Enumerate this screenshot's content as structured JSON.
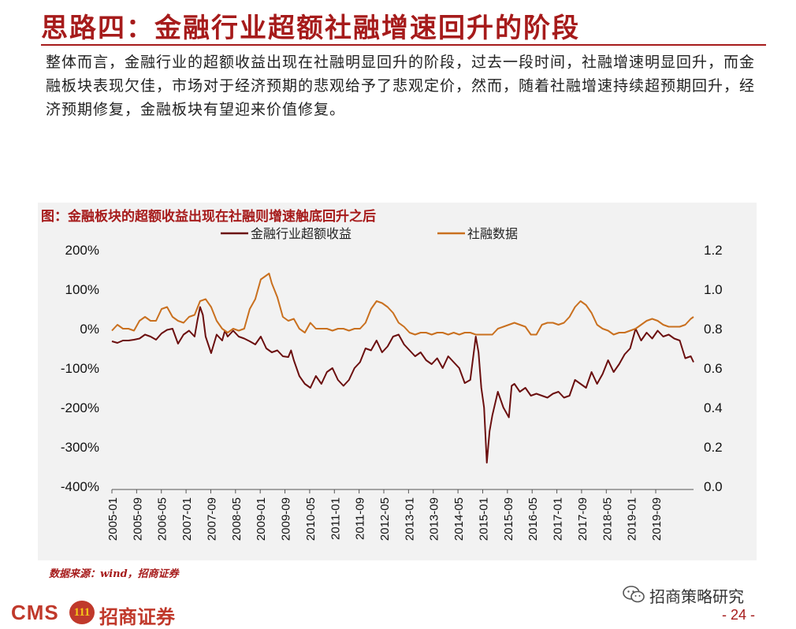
{
  "slide": {
    "title": "思路四：金融行业超额社融增速回升的阶段",
    "intro": "整体而言，金融行业的超额收益出现在社融明显回升的阶段，过去一段时间，社融增速明显回升，而金融板块表现欠佳，市场对于经济预期的悲观给予了悲观定价，然而，随着社融增速持续超预期回升，经济预期修复，金融板块有望迎来价值修复。",
    "source": "数据来源：wind，招商证券",
    "page_number": "- 24 -",
    "brand_en": "CMS",
    "brand_badge": "111",
    "brand_cn": "招商证券",
    "wechat_account": "招商策略研究"
  },
  "colors": {
    "accent": "#a61b1b",
    "series_excess": "#6b0f0f",
    "series_tsf": "#c9701f"
  },
  "chart_data": {
    "type": "line",
    "title": "图：金融板块的超额收益出现在社融则增速触底回升之后",
    "x_ticks": [
      "2005-01",
      "2005-09",
      "2006-05",
      "2007-01",
      "2007-09",
      "2008-05",
      "2009-01",
      "2009-09",
      "2010-05",
      "2011-01",
      "2011-09",
      "2012-05",
      "2013-01",
      "2013-09",
      "2014-05",
      "2015-01",
      "2015-09",
      "2016-05",
      "2017-01",
      "2017-09",
      "2018-05",
      "2019-01",
      "2019-09"
    ],
    "y_left": {
      "ticks": [
        "-400%",
        "-300%",
        "-200%",
        "-100%",
        "0%",
        "100%",
        "200%"
      ],
      "range": [
        -400,
        200
      ],
      "unit": "%"
    },
    "y_right": {
      "ticks": [
        "0.0",
        "0.2",
        "0.4",
        "0.6",
        "0.8",
        "1.0",
        "1.2"
      ],
      "range": [
        0.0,
        1.2
      ]
    },
    "series": [
      {
        "name": "金融行业超额收益",
        "axis": "left",
        "points": [
          [
            0,
            -32
          ],
          [
            2,
            -36
          ],
          [
            4,
            -30
          ],
          [
            6,
            -30
          ],
          [
            8,
            -28
          ],
          [
            10,
            -25
          ],
          [
            12,
            -15
          ],
          [
            14,
            -20
          ],
          [
            16,
            -28
          ],
          [
            18,
            -12
          ],
          [
            20,
            -3
          ],
          [
            22,
            0
          ],
          [
            24,
            -38
          ],
          [
            26,
            -15
          ],
          [
            28,
            -5
          ],
          [
            30,
            -20
          ],
          [
            31,
            20
          ],
          [
            32,
            55
          ],
          [
            33,
            35
          ],
          [
            34,
            -20
          ],
          [
            36,
            -62
          ],
          [
            38,
            -15
          ],
          [
            40,
            -30
          ],
          [
            41,
            -5
          ],
          [
            42,
            -20
          ],
          [
            44,
            -5
          ],
          [
            46,
            -20
          ],
          [
            48,
            -25
          ],
          [
            50,
            -32
          ],
          [
            52,
            -40
          ],
          [
            54,
            -20
          ],
          [
            56,
            -50
          ],
          [
            58,
            -60
          ],
          [
            60,
            -55
          ],
          [
            62,
            -70
          ],
          [
            64,
            -72
          ],
          [
            65,
            -55
          ],
          [
            66,
            -80
          ],
          [
            68,
            -120
          ],
          [
            70,
            -140
          ],
          [
            72,
            -150
          ],
          [
            74,
            -120
          ],
          [
            76,
            -140
          ],
          [
            78,
            -110
          ],
          [
            80,
            -100
          ],
          [
            82,
            -130
          ],
          [
            84,
            -145
          ],
          [
            86,
            -130
          ],
          [
            88,
            -100
          ],
          [
            90,
            -85
          ],
          [
            92,
            -50
          ],
          [
            94,
            -55
          ],
          [
            96,
            -30
          ],
          [
            98,
            -60
          ],
          [
            100,
            -45
          ],
          [
            102,
            -20
          ],
          [
            104,
            -15
          ],
          [
            106,
            -40
          ],
          [
            108,
            -55
          ],
          [
            110,
            -70
          ],
          [
            112,
            -60
          ],
          [
            114,
            -80
          ],
          [
            116,
            -90
          ],
          [
            118,
            -75
          ],
          [
            120,
            -100
          ],
          [
            122,
            -70
          ],
          [
            124,
            -85
          ],
          [
            126,
            -100
          ],
          [
            128,
            -138
          ],
          [
            130,
            -130
          ],
          [
            132,
            -20
          ],
          [
            133,
            -60
          ],
          [
            134,
            -150
          ],
          [
            135,
            -200
          ],
          [
            136,
            -340
          ],
          [
            137,
            -260
          ],
          [
            138,
            -220
          ],
          [
            140,
            -160
          ],
          [
            142,
            -200
          ],
          [
            144,
            -225
          ],
          [
            145,
            -145
          ],
          [
            146,
            -140
          ],
          [
            148,
            -160
          ],
          [
            150,
            -150
          ],
          [
            152,
            -170
          ],
          [
            154,
            -165
          ],
          [
            156,
            -170
          ],
          [
            158,
            -175
          ],
          [
            160,
            -165
          ],
          [
            162,
            -160
          ],
          [
            164,
            -175
          ],
          [
            166,
            -170
          ],
          [
            168,
            -130
          ],
          [
            170,
            -140
          ],
          [
            172,
            -150
          ],
          [
            174,
            -110
          ],
          [
            176,
            -140
          ],
          [
            178,
            -115
          ],
          [
            180,
            -80
          ],
          [
            182,
            -110
          ],
          [
            184,
            -90
          ],
          [
            186,
            -65
          ],
          [
            188,
            -50
          ],
          [
            190,
            0
          ],
          [
            192,
            -30
          ],
          [
            194,
            -10
          ],
          [
            196,
            -25
          ],
          [
            198,
            -5
          ],
          [
            200,
            -20
          ],
          [
            202,
            -15
          ],
          [
            204,
            -25
          ],
          [
            206,
            -30
          ],
          [
            208,
            -75
          ],
          [
            210,
            -70
          ],
          [
            211,
            -85
          ]
        ]
      },
      {
        "name": "社融数据",
        "axis": "right",
        "points": [
          [
            0,
            0.79
          ],
          [
            2,
            0.82
          ],
          [
            4,
            0.8
          ],
          [
            6,
            0.8
          ],
          [
            8,
            0.79
          ],
          [
            10,
            0.84
          ],
          [
            12,
            0.86
          ],
          [
            14,
            0.84
          ],
          [
            16,
            0.84
          ],
          [
            18,
            0.9
          ],
          [
            20,
            0.91
          ],
          [
            22,
            0.86
          ],
          [
            24,
            0.84
          ],
          [
            26,
            0.83
          ],
          [
            28,
            0.86
          ],
          [
            30,
            0.87
          ],
          [
            32,
            0.94
          ],
          [
            34,
            0.95
          ],
          [
            36,
            0.91
          ],
          [
            38,
            0.84
          ],
          [
            40,
            0.8
          ],
          [
            42,
            0.78
          ],
          [
            44,
            0.8
          ],
          [
            46,
            0.79
          ],
          [
            48,
            0.8
          ],
          [
            50,
            0.9
          ],
          [
            52,
            0.95
          ],
          [
            54,
            1.05
          ],
          [
            56,
            1.07
          ],
          [
            57,
            1.08
          ],
          [
            58,
            1.03
          ],
          [
            60,
            0.96
          ],
          [
            62,
            0.86
          ],
          [
            64,
            0.84
          ],
          [
            66,
            0.85
          ],
          [
            68,
            0.8
          ],
          [
            70,
            0.78
          ],
          [
            72,
            0.83
          ],
          [
            74,
            0.8
          ],
          [
            76,
            0.8
          ],
          [
            78,
            0.8
          ],
          [
            80,
            0.79
          ],
          [
            82,
            0.8
          ],
          [
            84,
            0.8
          ],
          [
            86,
            0.79
          ],
          [
            88,
            0.8
          ],
          [
            90,
            0.8
          ],
          [
            92,
            0.83
          ],
          [
            94,
            0.9
          ],
          [
            96,
            0.94
          ],
          [
            98,
            0.93
          ],
          [
            100,
            0.91
          ],
          [
            102,
            0.88
          ],
          [
            104,
            0.83
          ],
          [
            106,
            0.81
          ],
          [
            108,
            0.78
          ],
          [
            110,
            0.77
          ],
          [
            112,
            0.78
          ],
          [
            114,
            0.78
          ],
          [
            116,
            0.77
          ],
          [
            118,
            0.78
          ],
          [
            120,
            0.78
          ],
          [
            122,
            0.77
          ],
          [
            124,
            0.78
          ],
          [
            126,
            0.77
          ],
          [
            128,
            0.78
          ],
          [
            130,
            0.78
          ],
          [
            132,
            0.77
          ],
          [
            134,
            0.77
          ],
          [
            136,
            0.77
          ],
          [
            138,
            0.77
          ],
          [
            140,
            0.8
          ],
          [
            142,
            0.81
          ],
          [
            144,
            0.82
          ],
          [
            146,
            0.83
          ],
          [
            148,
            0.82
          ],
          [
            150,
            0.81
          ],
          [
            152,
            0.77
          ],
          [
            154,
            0.77
          ],
          [
            156,
            0.82
          ],
          [
            158,
            0.83
          ],
          [
            160,
            0.83
          ],
          [
            162,
            0.82
          ],
          [
            164,
            0.83
          ],
          [
            166,
            0.86
          ],
          [
            168,
            0.91
          ],
          [
            170,
            0.94
          ],
          [
            172,
            0.92
          ],
          [
            174,
            0.88
          ],
          [
            176,
            0.82
          ],
          [
            178,
            0.8
          ],
          [
            180,
            0.79
          ],
          [
            182,
            0.77
          ],
          [
            184,
            0.78
          ],
          [
            186,
            0.78
          ],
          [
            188,
            0.79
          ],
          [
            190,
            0.8
          ],
          [
            192,
            0.82
          ],
          [
            194,
            0.84
          ],
          [
            196,
            0.85
          ],
          [
            198,
            0.84
          ],
          [
            200,
            0.82
          ],
          [
            202,
            0.81
          ],
          [
            204,
            0.81
          ],
          [
            206,
            0.81
          ],
          [
            208,
            0.82
          ],
          [
            210,
            0.85
          ],
          [
            211,
            0.86
          ]
        ]
      }
    ],
    "x_range": [
      0,
      211
    ],
    "legend_position": "top-center"
  }
}
